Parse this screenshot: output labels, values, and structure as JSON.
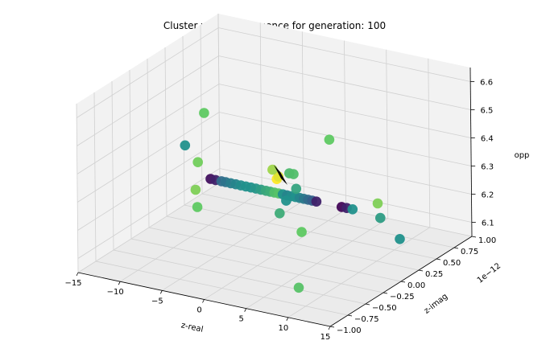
{
  "chart_data": {
    "type": "scatter",
    "projection": "3d",
    "title": "Cluster wise Convergence for generation: 100",
    "xlabel": "z-real",
    "ylabel": "z-imag",
    "zlabel": "opp",
    "y_offset_label": "1e−12",
    "xlim": [
      -15,
      15
    ],
    "ylim": [
      -1.0,
      1.0
    ],
    "zlim": [
      6.05,
      6.65
    ],
    "xticks": [
      "−15",
      "−10",
      "−5",
      "0",
      "5",
      "10",
      "15"
    ],
    "yticks": [
      "−1.00",
      "−0.75",
      "−0.50",
      "−0.25",
      "0.00",
      "0.25",
      "0.50",
      "0.75",
      "1.00"
    ],
    "zticks": [
      "6.1",
      "6.2",
      "6.3",
      "6.4",
      "6.5",
      "6.6"
    ],
    "grid": true,
    "colormap": "viridis",
    "series": [
      {
        "points": [
          {
            "x": -7.6,
            "y": 0.0,
            "z": 6.27,
            "c": 0.05
          },
          {
            "x": -7.0,
            "y": 0.0,
            "z": 6.27,
            "c": 0.1
          },
          {
            "x": -6.3,
            "y": 0.0,
            "z": 6.27,
            "c": 0.35
          },
          {
            "x": -5.8,
            "y": 0.0,
            "z": 6.27,
            "c": 0.38
          },
          {
            "x": -5.2,
            "y": 0.0,
            "z": 6.27,
            "c": 0.42
          },
          {
            "x": -4.6,
            "y": 0.0,
            "z": 6.27,
            "c": 0.45
          },
          {
            "x": -4.0,
            "y": 0.0,
            "z": 6.27,
            "c": 0.48
          },
          {
            "x": -3.4,
            "y": 0.0,
            "z": 6.27,
            "c": 0.5
          },
          {
            "x": -2.8,
            "y": 0.0,
            "z": 6.27,
            "c": 0.5
          },
          {
            "x": -2.2,
            "y": 0.0,
            "z": 6.27,
            "c": 0.52
          },
          {
            "x": -1.6,
            "y": 0.0,
            "z": 6.27,
            "c": 0.55
          },
          {
            "x": -1.0,
            "y": 0.0,
            "z": 6.27,
            "c": 0.6
          },
          {
            "x": -0.5,
            "y": 0.0,
            "z": 6.27,
            "c": 0.62
          },
          {
            "x": 0.0,
            "y": 0.0,
            "z": 6.27,
            "c": 0.7
          },
          {
            "x": 0.5,
            "y": 0.0,
            "z": 6.27,
            "c": 0.72
          },
          {
            "x": 1.0,
            "y": 0.0,
            "z": 6.27,
            "c": 0.5
          },
          {
            "x": 1.5,
            "y": 0.0,
            "z": 6.27,
            "c": 0.45
          },
          {
            "x": 2.0,
            "y": 0.0,
            "z": 6.27,
            "c": 0.48
          },
          {
            "x": 2.5,
            "y": 0.0,
            "z": 6.27,
            "c": 0.5
          },
          {
            "x": 3.0,
            "y": 0.0,
            "z": 6.27,
            "c": 0.45
          },
          {
            "x": 3.5,
            "y": 0.0,
            "z": 6.27,
            "c": 0.4
          },
          {
            "x": 4.0,
            "y": 0.0,
            "z": 6.27,
            "c": 0.35
          },
          {
            "x": 4.5,
            "y": 0.0,
            "z": 6.27,
            "c": 0.3
          },
          {
            "x": 5.0,
            "y": 0.0,
            "z": 6.27,
            "c": 0.1
          },
          {
            "x": 8.0,
            "y": 0.0,
            "z": 6.27,
            "c": 0.02
          },
          {
            "x": 8.6,
            "y": 0.0,
            "z": 6.27,
            "c": 0.1
          },
          {
            "x": 9.3,
            "y": 0.0,
            "z": 6.27,
            "c": 0.5
          },
          {
            "x": 0.3,
            "y": 0.0,
            "z": 6.32,
            "c": 1.0
          },
          {
            "x": 0.5,
            "y": 0.0,
            "z": 6.33,
            "c": 0.95
          },
          {
            "x": -0.2,
            "y": 0.0,
            "z": 6.35,
            "c": 0.85
          },
          {
            "x": 1.8,
            "y": 0.0,
            "z": 6.35,
            "c": 0.68
          },
          {
            "x": 2.3,
            "y": 0.0,
            "z": 6.35,
            "c": 0.7
          },
          {
            "x": 2.6,
            "y": 0.0,
            "z": 6.3,
            "c": 0.58
          },
          {
            "x": 1.4,
            "y": 0.0,
            "z": 6.25,
            "c": 0.5
          },
          {
            "x": 0.6,
            "y": 0.0,
            "z": 6.2,
            "c": 0.62
          },
          {
            "x": 3.2,
            "y": 0.0,
            "z": 6.15,
            "c": 0.75
          },
          {
            "x": -8.3,
            "y": 0.0,
            "z": 6.5,
            "c": 0.75
          },
          {
            "x": -10.6,
            "y": 0.0,
            "z": 6.37,
            "c": 0.5
          },
          {
            "x": -9.1,
            "y": 0.0,
            "z": 6.32,
            "c": 0.78
          },
          {
            "x": -9.4,
            "y": 0.0,
            "z": 6.22,
            "c": 0.8
          },
          {
            "x": -9.2,
            "y": 0.0,
            "z": 6.16,
            "c": 0.75
          },
          {
            "x": 6.6,
            "y": 0.0,
            "z": 6.5,
            "c": 0.75
          },
          {
            "x": 12.3,
            "y": 0.0,
            "z": 6.31,
            "c": 0.8
          },
          {
            "x": 12.6,
            "y": 0.0,
            "z": 6.26,
            "c": 0.55
          },
          {
            "x": 14.9,
            "y": 0.0,
            "z": 6.2,
            "c": 0.5
          },
          {
            "x": 2.8,
            "y": 0.0,
            "z": 5.95,
            "c": 0.72
          }
        ]
      }
    ]
  }
}
